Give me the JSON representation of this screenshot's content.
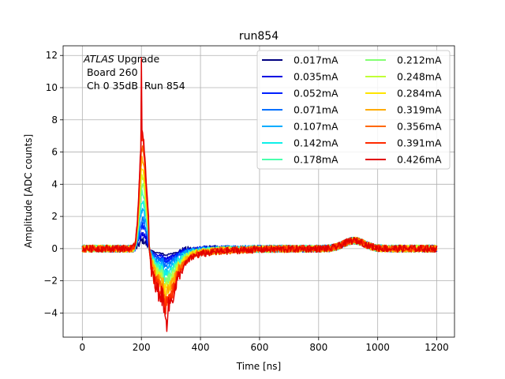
{
  "chart_data": {
    "type": "line",
    "title": "run854",
    "xlabel": "Time [ns]",
    "ylabel": "Amplitude [ADC counts]",
    "xlim": [
      -65,
      1260
    ],
    "ylim": [
      -5.5,
      12.6
    ],
    "xticks": [
      0,
      200,
      400,
      600,
      800,
      1000,
      1200
    ],
    "yticks": [
      -4,
      -2,
      0,
      2,
      4,
      6,
      8,
      10,
      12
    ],
    "xtick_labels": [
      "0",
      "200",
      "400",
      "600",
      "800",
      "1000",
      "1200"
    ],
    "ytick_labels": [
      "−4",
      "−2",
      "0",
      "2",
      "4",
      "6",
      "8",
      "10",
      "12"
    ],
    "grid": true,
    "legend_position": "top-right",
    "legend_columns": 2,
    "annotation": {
      "line1_italic": "ATLAS",
      "line1_rest": " Upgrade",
      "line2": " Board 260",
      "line3": " Ch 0 35dB  Run 854"
    },
    "x_range_ns": [
      0,
      1200
    ],
    "series": [
      {
        "name": "0.017mA",
        "color": "#00007f",
        "peak": 0.5,
        "undershoot": -0.3
      },
      {
        "name": "0.035mA",
        "color": "#0000e2",
        "peak": 1.0,
        "undershoot": -0.45
      },
      {
        "name": "0.052mA",
        "color": "#0020ff",
        "peak": 1.4,
        "undershoot": -0.6
      },
      {
        "name": "0.071mA",
        "color": "#0070ff",
        "peak": 1.8,
        "undershoot": -0.75
      },
      {
        "name": "0.107mA",
        "color": "#00acff",
        "peak": 2.4,
        "undershoot": -1.0
      },
      {
        "name": "0.142mA",
        "color": "#0ef0e9",
        "peak": 3.0,
        "undershoot": -1.2
      },
      {
        "name": "0.178mA",
        "color": "#49ffad",
        "peak": 3.5,
        "undershoot": -1.4
      },
      {
        "name": "0.212mA",
        "color": "#84ff73",
        "peak": 4.0,
        "undershoot": -1.6
      },
      {
        "name": "0.248mA",
        "color": "#c1ff36",
        "peak": 4.5,
        "undershoot": -1.8
      },
      {
        "name": "0.284mA",
        "color": "#ffe500",
        "peak": 5.0,
        "undershoot": -2.0
      },
      {
        "name": "0.319mA",
        "color": "#ffab00",
        "peak": 5.6,
        "undershoot": -2.2
      },
      {
        "name": "0.356mA",
        "color": "#ff6800",
        "peak": 6.2,
        "undershoot": -2.4
      },
      {
        "name": "0.391mA",
        "color": "#ff2a00",
        "peak": 6.8,
        "undershoot": -2.7
      },
      {
        "name": "0.426mA",
        "color": "#e20000",
        "peak": 7.2,
        "undershoot": -3.0
      }
    ],
    "features": {
      "baseline": 0,
      "pulse_start_ns": 170,
      "pulse_peak_ns": 203,
      "spike_max": 11.7,
      "undershoot_center_ns": 275,
      "undershoot_min": -4.6,
      "recovery_end_ns": 600,
      "bump_center_ns": 920,
      "bump_height": 0.5
    }
  }
}
